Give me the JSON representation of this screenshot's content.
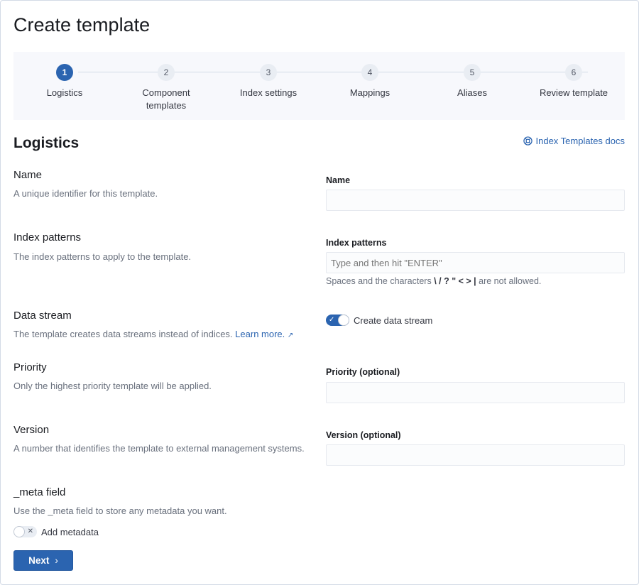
{
  "page": {
    "title": "Create template"
  },
  "steps": [
    {
      "number": "1",
      "label": "Logistics",
      "active": true
    },
    {
      "number": "2",
      "label": "Component templates",
      "active": false
    },
    {
      "number": "3",
      "label": "Index settings",
      "active": false
    },
    {
      "number": "4",
      "label": "Mappings",
      "active": false
    },
    {
      "number": "5",
      "label": "Aliases",
      "active": false
    },
    {
      "number": "6",
      "label": "Review template",
      "active": false
    }
  ],
  "section": {
    "title": "Logistics",
    "docs_link": "Index Templates docs",
    "docs_icon": "lifebuoy-icon"
  },
  "name": {
    "title": "Name",
    "description": "A unique identifier for this template.",
    "field_label": "Name",
    "value": ""
  },
  "index_patterns": {
    "title": "Index patterns",
    "description": "The index patterns to apply to the template.",
    "field_label": "Index patterns",
    "placeholder": "Type and then hit \"ENTER\"",
    "help_prefix": "Spaces and the characters",
    "help_chars": "\\ / ? \" < > |",
    "help_suffix": "are not allowed."
  },
  "data_stream": {
    "title": "Data stream",
    "description": "The template creates data streams instead of indices.",
    "learn_more": "Learn more.",
    "toggle_label": "Create data stream",
    "enabled": true
  },
  "priority": {
    "title": "Priority",
    "description": "Only the highest priority template will be applied.",
    "field_label": "Priority (optional)",
    "value": ""
  },
  "version": {
    "title": "Version",
    "description": "A number that identifies the template to external management systems.",
    "field_label": "Version (optional)",
    "value": ""
  },
  "meta": {
    "title": "_meta field",
    "description": "Use the _meta field to store any metadata you want.",
    "toggle_label": "Add metadata",
    "enabled": false
  },
  "actions": {
    "next": "Next"
  },
  "colors": {
    "primary": "#2b64b0",
    "step_bg": "#f7f8fc"
  }
}
